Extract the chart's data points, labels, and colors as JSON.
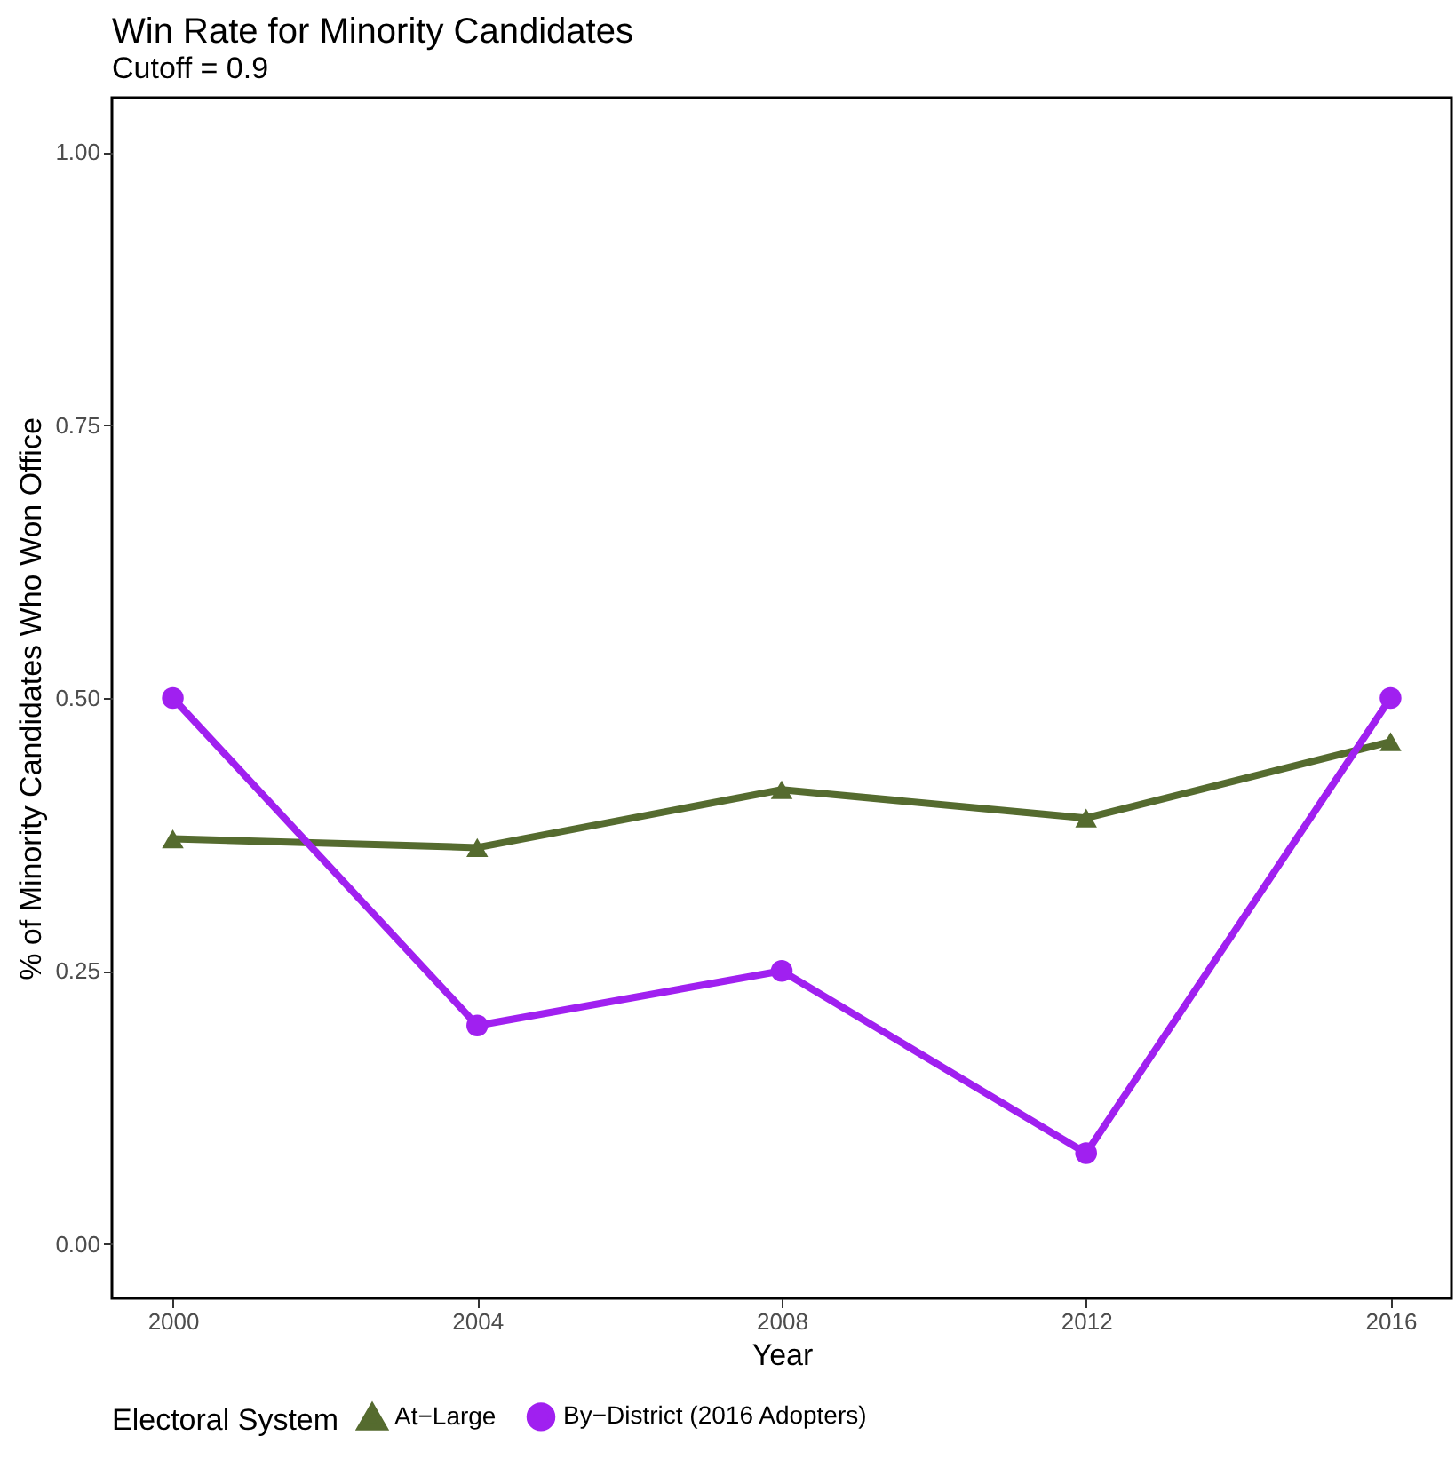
{
  "chart_data": {
    "type": "line",
    "title": "Win Rate for Minority Candidates",
    "subtitle": "Cutoff = 0.9",
    "xlabel": "Year",
    "ylabel": "% of Minority Candidates Who Won Office",
    "legend_title": "Electoral System",
    "x": [
      2000,
      2004,
      2008,
      2012,
      2016
    ],
    "series": [
      {
        "name": "At−Large",
        "color": "#556b2f",
        "marker": "triangle",
        "values": [
          0.371,
          0.363,
          0.416,
          0.39,
          0.46
        ]
      },
      {
        "name": "By−District (2016 Adopters)",
        "color": "#a020f0",
        "marker": "circle",
        "values": [
          0.5,
          0.2,
          0.25,
          0.083,
          0.5
        ]
      }
    ],
    "xlim": [
      1999.2,
      2016.8
    ],
    "xticks": [
      2000,
      2004,
      2008,
      2012,
      2016
    ],
    "ylim": [
      -0.05,
      1.05
    ],
    "yticks": [
      {
        "value": 0,
        "label": "0.00"
      },
      0.25,
      {
        "value": 0.5,
        "label": "0.50"
      },
      0.75,
      {
        "value": 1,
        "label": "1.00"
      }
    ],
    "grid": false,
    "legend": "bottom",
    "line_style": "solid"
  }
}
